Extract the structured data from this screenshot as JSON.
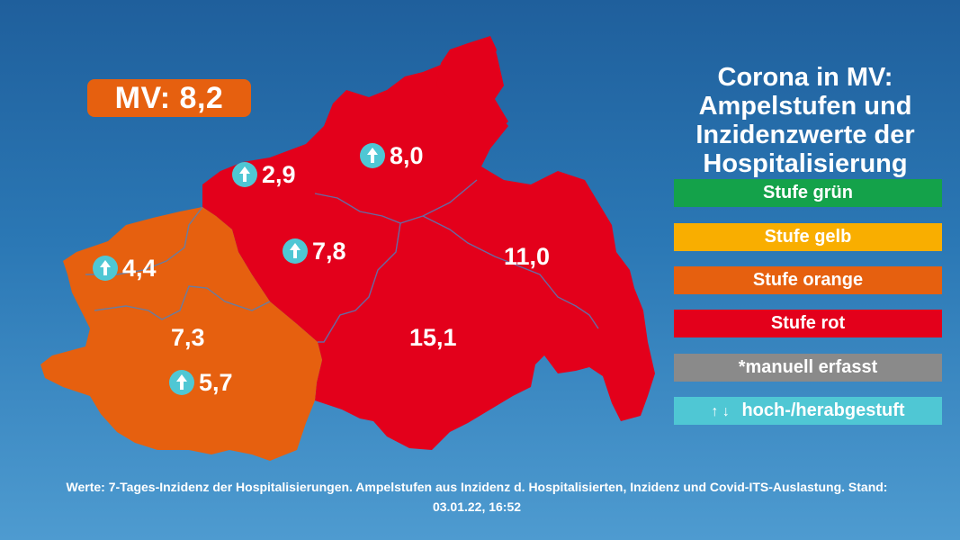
{
  "title_lines": [
    "Corona in MV:",
    "Ampelstufen und",
    "Inzidenzwerte der",
    "Hospitalisierung"
  ],
  "badge": "MV: 8,2",
  "colors": {
    "green": "#14a24a",
    "yellow": "#f9ae00",
    "orange": "#e6600f",
    "red": "#e3001b",
    "gray": "#8a8a8a",
    "cyan": "#4fc7d4"
  },
  "legend": [
    {
      "label": "Stufe grün",
      "color": "#14a24a"
    },
    {
      "label": "Stufe gelb",
      "color": "#f9ae00"
    },
    {
      "label": "Stufe orange",
      "color": "#e6600f"
    },
    {
      "label": "Stufe rot",
      "color": "#e3001b"
    },
    {
      "label": "*manuell erfasst",
      "color": "#8a8a8a"
    },
    {
      "label": "hoch-/herabgestuft",
      "color": "#4fc7d4",
      "arrows": "↑ ↓"
    }
  ],
  "regions": [
    {
      "value": "2,9",
      "level": "rot",
      "trend": "up"
    },
    {
      "value": "8,0",
      "level": "rot",
      "trend": "up"
    },
    {
      "value": "4,4",
      "level": "orange",
      "trend": "up"
    },
    {
      "value": "7,8",
      "level": "rot",
      "trend": "up"
    },
    {
      "value": "11,0",
      "level": "rot",
      "trend": "none"
    },
    {
      "value": "7,3",
      "level": "orange",
      "trend": "none"
    },
    {
      "value": "15,1",
      "level": "rot",
      "trend": "none"
    },
    {
      "value": "5,7",
      "level": "orange",
      "trend": "up"
    }
  ],
  "footer_line1": "Werte: 7-Tages-Inzidenz der Hospitalisierungen. Ampelstufen aus Inzidenz d. Hospitalisierten, Inzidenz und Covid-ITS-Auslastung. Stand:",
  "footer_line2": "03.01.22, 16:52"
}
